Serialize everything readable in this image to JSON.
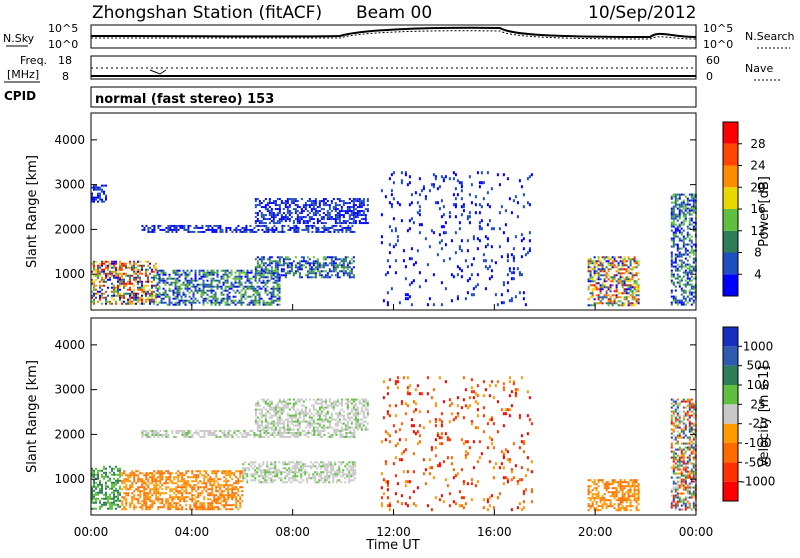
{
  "header": {
    "station": "Zhongshan Station (fitACF)",
    "beam": "Beam 00",
    "date": "10/Sep/2012"
  },
  "strips": {
    "nsky_label": "N.Sky",
    "nsky_hi": "10^5",
    "nsky_lo": "10^0",
    "nsearch_label": "N.Search",
    "nsearch_hi": "10^5",
    "nsearch_lo": "10^0",
    "freq_label": "Freq.",
    "freq_unit": "[MHz]",
    "freq_hi": "18",
    "freq_lo": "8",
    "nave_label": "Nave",
    "nave_hi": "60",
    "nave_lo": "0",
    "cpid_label": "CPID",
    "cpid_value": "normal (fast stereo) 153"
  },
  "x_axis": {
    "label": "Time UT",
    "ticks": [
      "00:00",
      "04:00",
      "08:00",
      "12:00",
      "16:00",
      "20:00",
      "00:00"
    ]
  },
  "chart_data": [
    {
      "type": "heatmap",
      "name": "power",
      "ylabel": "Slant Range [km]",
      "yticks": [
        "1000",
        "2000",
        "3000",
        "4000"
      ],
      "ylim": [
        200,
        4600
      ],
      "xlim": [
        0,
        24
      ],
      "colorbar_label": "Power [dB]",
      "colorbar_ticks": [
        "4",
        "8",
        "12",
        "16",
        "20",
        "24",
        "28"
      ],
      "colors": [
        "#0000ff",
        "#1f4fbf",
        "#2e7d57",
        "#5fbf3f",
        "#e8d800",
        "#ff8c00",
        "#ff4500",
        "#ff0000"
      ],
      "regions": [
        {
          "t0": 0.0,
          "t1": 2.6,
          "r0": 300,
          "r1": 1300,
          "level": "high"
        },
        {
          "t0": 0.0,
          "t1": 0.6,
          "r0": 2600,
          "r1": 3000,
          "level": "low"
        },
        {
          "t0": 2.6,
          "t1": 7.5,
          "r0": 300,
          "r1": 1100,
          "level": "mid"
        },
        {
          "t0": 2.0,
          "t1": 10.5,
          "r0": 1900,
          "r1": 2100,
          "level": "low"
        },
        {
          "t0": 6.5,
          "t1": 10.5,
          "r0": 900,
          "r1": 1400,
          "level": "mid"
        },
        {
          "t0": 6.5,
          "t1": 11.0,
          "r0": 2100,
          "r1": 2700,
          "level": "low"
        },
        {
          "t0": 11.5,
          "t1": 17.5,
          "r0": 300,
          "r1": 3300,
          "level": "sparse"
        },
        {
          "t0": 19.7,
          "t1": 21.8,
          "r0": 300,
          "r1": 1400,
          "level": "high"
        },
        {
          "t0": 23.0,
          "t1": 24.0,
          "r0": 300,
          "r1": 2800,
          "level": "mid"
        }
      ]
    },
    {
      "type": "heatmap",
      "name": "velocity",
      "ylabel": "Slant Range [km]",
      "yticks": [
        "1000",
        "2000",
        "3000",
        "4000"
      ],
      "ylim": [
        200,
        4600
      ],
      "xlim": [
        0,
        24
      ],
      "colorbar_label": "Velocity [m s-1]",
      "colorbar_ticks": [
        "1000",
        "500",
        "100",
        "25",
        "-25",
        "-100",
        "-500",
        "-1000"
      ],
      "colors": [
        "#1830c0",
        "#2e5bb0",
        "#2e7d57",
        "#5fbf3f",
        "#c8c8c8",
        "#ff9a00",
        "#ff6a00",
        "#ff3000",
        "#ff0000"
      ],
      "regions": [
        {
          "t0": 0.0,
          "t1": 1.2,
          "r0": 300,
          "r1": 1300,
          "level": "pos"
        },
        {
          "t0": 1.2,
          "t1": 6.0,
          "r0": 300,
          "r1": 1200,
          "level": "neg"
        },
        {
          "t0": 2.0,
          "t1": 10.5,
          "r0": 1900,
          "r1": 2100,
          "level": "zero"
        },
        {
          "t0": 6.0,
          "t1": 10.5,
          "r0": 900,
          "r1": 1400,
          "level": "zero"
        },
        {
          "t0": 6.5,
          "t1": 11.0,
          "r0": 2100,
          "r1": 2800,
          "level": "zero"
        },
        {
          "t0": 11.5,
          "t1": 17.5,
          "r0": 300,
          "r1": 3300,
          "level": "sparse"
        },
        {
          "t0": 19.7,
          "t1": 21.8,
          "r0": 300,
          "r1": 1000,
          "level": "neg"
        },
        {
          "t0": 23.0,
          "t1": 24.0,
          "r0": 300,
          "r1": 2800,
          "level": "mix"
        }
      ]
    }
  ]
}
